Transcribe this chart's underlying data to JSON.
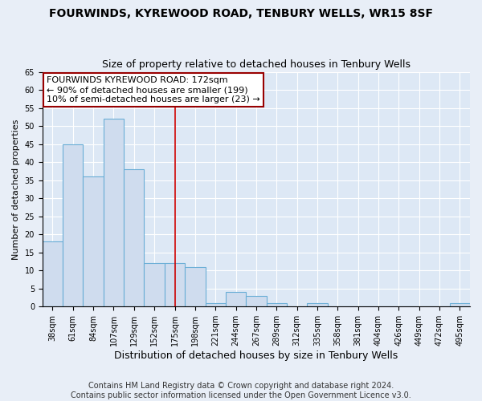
{
  "title": "FOURWINDS, KYREWOOD ROAD, TENBURY WELLS, WR15 8SF",
  "subtitle": "Size of property relative to detached houses in Tenbury Wells",
  "xlabel": "Distribution of detached houses by size in Tenbury Wells",
  "ylabel": "Number of detached properties",
  "bin_labels": [
    "38sqm",
    "61sqm",
    "84sqm",
    "107sqm",
    "129sqm",
    "152sqm",
    "175sqm",
    "198sqm",
    "221sqm",
    "244sqm",
    "267sqm",
    "289sqm",
    "312sqm",
    "335sqm",
    "358sqm",
    "381sqm",
    "404sqm",
    "426sqm",
    "449sqm",
    "472sqm",
    "495sqm"
  ],
  "bar_heights": [
    18,
    45,
    36,
    52,
    38,
    12,
    12,
    11,
    1,
    4,
    3,
    1,
    0,
    1,
    0,
    0,
    0,
    0,
    0,
    0,
    1
  ],
  "bar_color": "#cfdcee",
  "bar_edge_color": "#6aaed6",
  "vline_x_index": 6,
  "vline_color": "#cc0000",
  "ylim": [
    0,
    65
  ],
  "yticks": [
    0,
    5,
    10,
    15,
    20,
    25,
    30,
    35,
    40,
    45,
    50,
    55,
    60,
    65
  ],
  "annotation_text": "FOURWINDS KYREWOOD ROAD: 172sqm\n← 90% of detached houses are smaller (199)\n10% of semi-detached houses are larger (23) →",
  "annotation_box_color": "#ffffff",
  "annotation_box_edge_color": "#990000",
  "footer_line1": "Contains HM Land Registry data © Crown copyright and database right 2024.",
  "footer_line2": "Contains public sector information licensed under the Open Government Licence v3.0.",
  "bg_color": "#dde8f5",
  "fig_bg_color": "#e8eef7",
  "grid_color": "#ffffff",
  "title_fontsize": 10,
  "subtitle_fontsize": 9,
  "xlabel_fontsize": 9,
  "ylabel_fontsize": 8,
  "tick_fontsize": 7,
  "annotation_fontsize": 8,
  "footer_fontsize": 7
}
